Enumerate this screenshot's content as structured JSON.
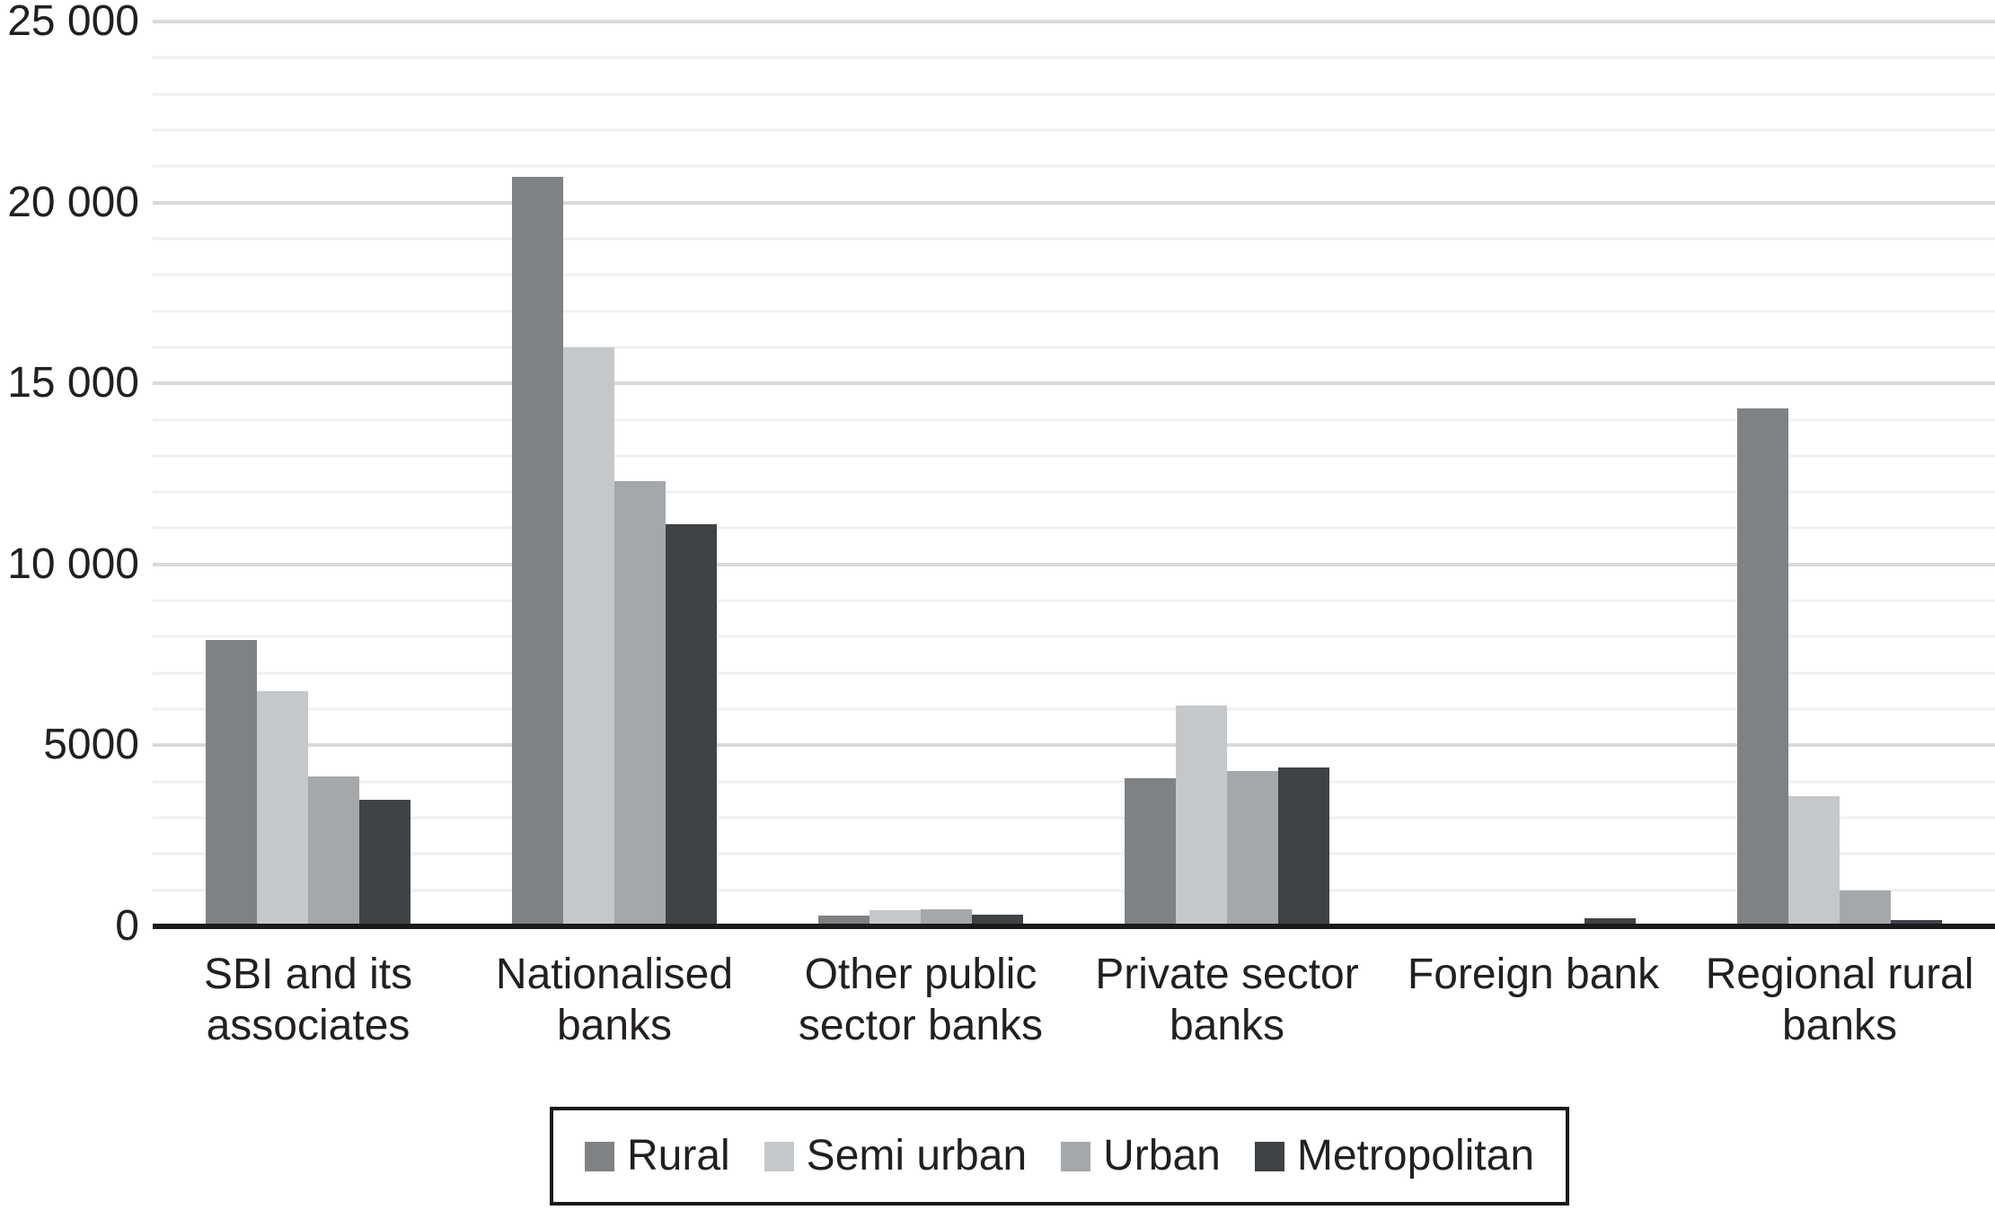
{
  "figure": {
    "background_color": "#ffffff",
    "text_color": "#231f20"
  },
  "chart_data": {
    "type": "bar",
    "title": "",
    "xlabel": "",
    "ylabel": "",
    "categories": [
      "SBI and its associates",
      "Nationalised banks",
      "Other public sector banks",
      "Private sector banks",
      "Foreign bank",
      "Regional rural banks"
    ],
    "category_label_lines": [
      [
        "SBI and its",
        "associates"
      ],
      [
        "Nationalised",
        "banks"
      ],
      [
        "Other public",
        "sector banks"
      ],
      [
        "Private sector",
        "banks"
      ],
      [
        "Foreign bank"
      ],
      [
        "Regional rural",
        "banks"
      ]
    ],
    "series": [
      {
        "name": "Rural",
        "color": "#7f8285",
        "values": [
          7900,
          20700,
          300,
          4100,
          0,
          14300
        ]
      },
      {
        "name": "Semi urban",
        "color": "#c5c8ca",
        "values": [
          6500,
          16000,
          440,
          6100,
          0,
          3600
        ]
      },
      {
        "name": "Urban",
        "color": "#a5a8ab",
        "values": [
          4150,
          12300,
          465,
          4300,
          0,
          1000
        ]
      },
      {
        "name": "Metropolitan",
        "color": "#3f4346",
        "values": [
          3500,
          11100,
          320,
          4400,
          215,
          175
        ]
      }
    ],
    "ylim": [
      0,
      25000
    ],
    "yticks": [
      {
        "value": 0,
        "label": "0"
      },
      {
        "value": 5000,
        "label": "5000"
      },
      {
        "value": 10000,
        "label": "10 000"
      },
      {
        "value": 15000,
        "label": "15 000"
      },
      {
        "value": 20000,
        "label": "20 000"
      },
      {
        "value": 25000,
        "label": "25 000"
      }
    ],
    "grid": {
      "minor_step": 1000,
      "major_step": 5000,
      "minor_color": "#efefef",
      "major_color": "#d9d9d9"
    },
    "axis_line_color": "#1a1a1a",
    "legend": {
      "position": "bottom",
      "entries": [
        "Rural",
        "Semi urban",
        "Urban",
        "Metropolitan"
      ]
    }
  }
}
